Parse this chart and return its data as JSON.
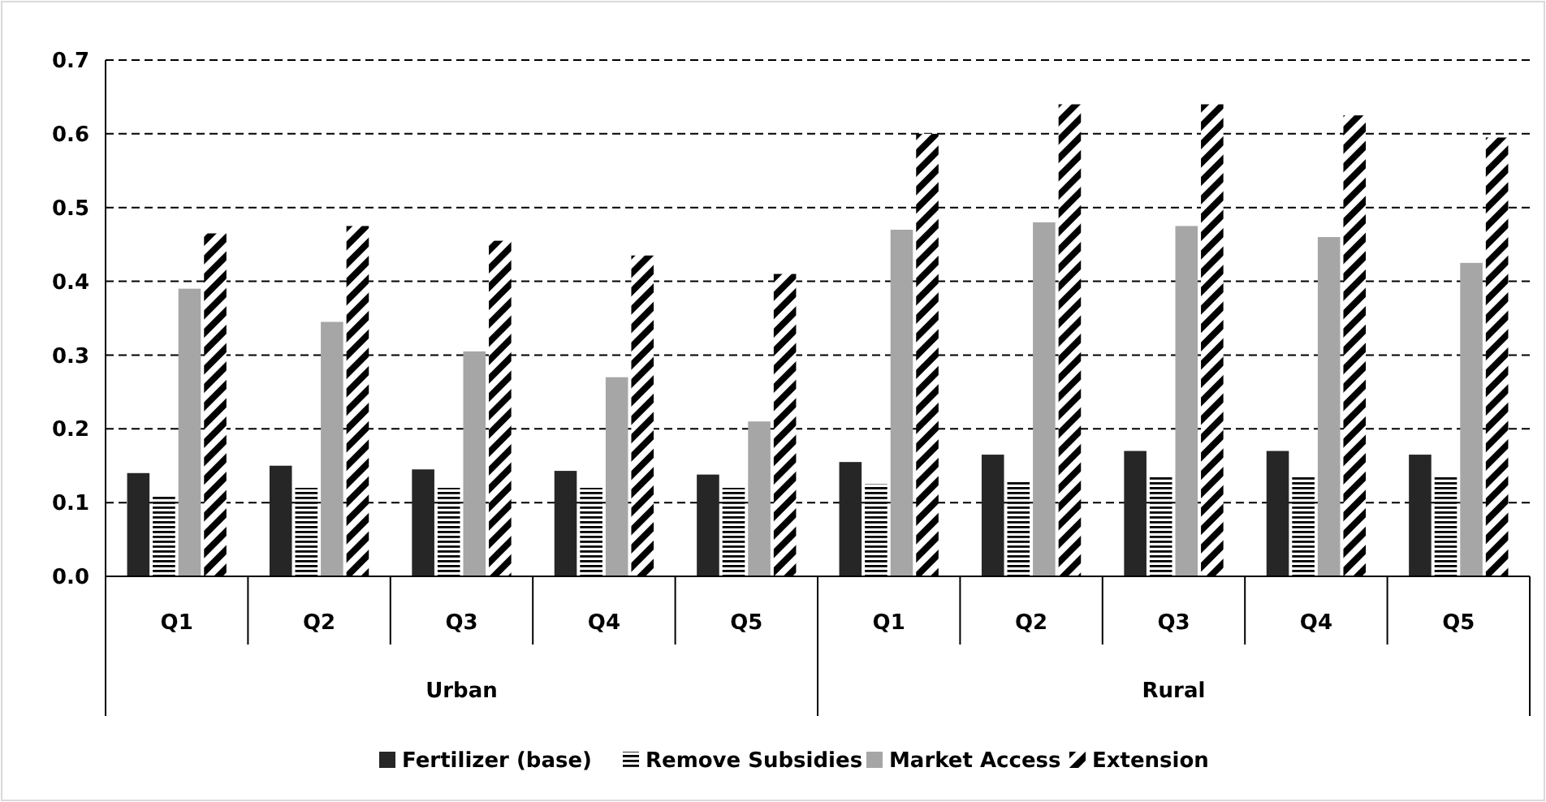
{
  "chart_data": {
    "type": "bar",
    "categories": [
      "Q1",
      "Q2",
      "Q3",
      "Q4",
      "Q5",
      "Q1",
      "Q2",
      "Q3",
      "Q4",
      "Q5"
    ],
    "series": [
      {
        "name": "Fertilizer (base)",
        "color": "#262626",
        "values": [
          0.14,
          0.15,
          0.145,
          0.143,
          0.138,
          0.155,
          0.165,
          0.17,
          0.17,
          0.165
        ]
      },
      {
        "name": "Remove Subsidies",
        "color": "#000000",
        "values": [
          0.11,
          0.12,
          0.12,
          0.12,
          0.12,
          0.125,
          0.13,
          0.135,
          0.135,
          0.135
        ]
      },
      {
        "name": "Market Access",
        "color": "#a6a6a6",
        "values": [
          0.39,
          0.345,
          0.305,
          0.27,
          0.21,
          0.47,
          0.48,
          0.475,
          0.46,
          0.425
        ]
      },
      {
        "name": "Extension",
        "color": "#000000",
        "values": [
          0.465,
          0.475,
          0.455,
          0.435,
          0.41,
          0.6,
          0.64,
          0.64,
          0.625,
          0.595
        ]
      }
    ],
    "annotations": [
      "Urban",
      "Rural"
    ],
    "ylim": [
      0,
      0.7
    ],
    "yticks": [
      {
        "value": 0,
        "label": "0.0"
      },
      0.1,
      0.2,
      0.3,
      0.4,
      0.5,
      0.6,
      0.7
    ],
    "grid": "y",
    "legend": "bottom"
  }
}
